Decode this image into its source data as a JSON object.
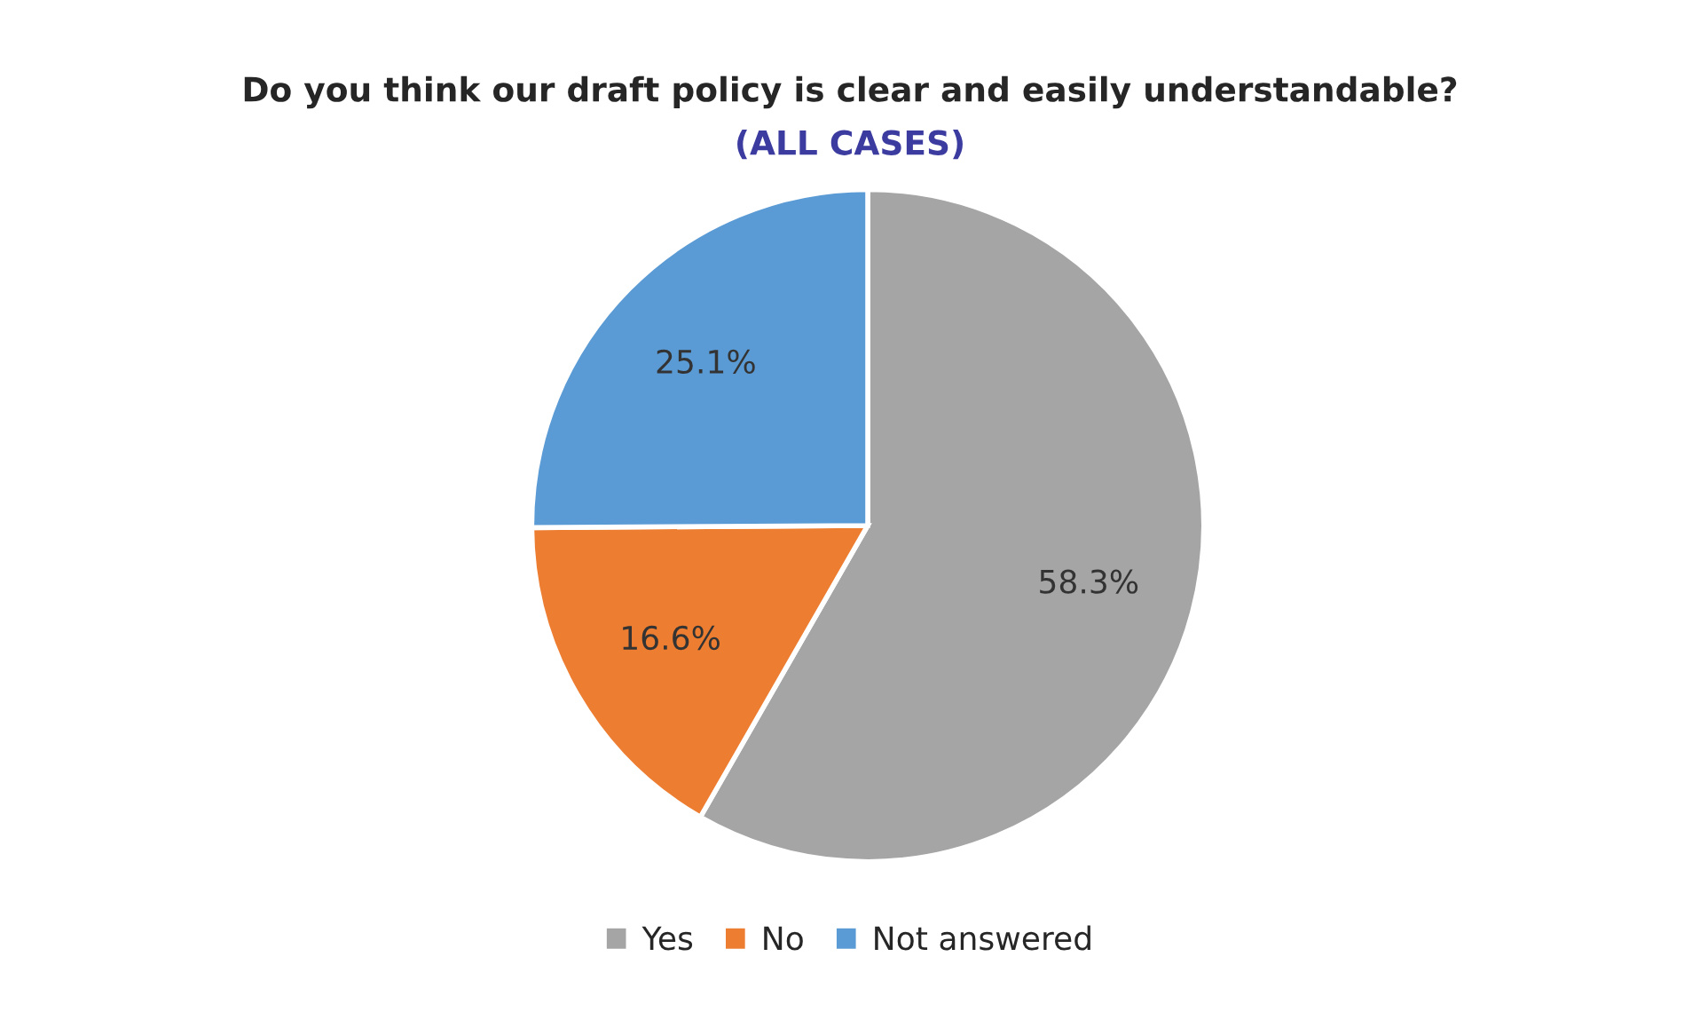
{
  "chart_data": {
    "type": "pie",
    "title": "Do you think our draft policy is clear and easily understandable?",
    "subtitle": "(ALL CASES)",
    "categories": [
      "Yes",
      "No",
      "Not answered"
    ],
    "values": [
      58.3,
      16.6,
      25.1
    ],
    "value_labels": [
      "58.3%",
      "16.6%",
      "25.1%"
    ],
    "colors": [
      "#a5a5a5",
      "#ed7d31",
      "#5b9bd5"
    ],
    "legend": "bottom"
  }
}
